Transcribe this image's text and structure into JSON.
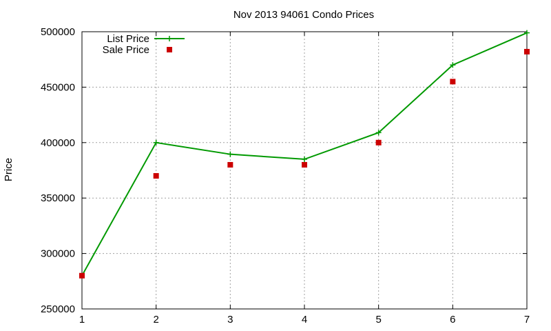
{
  "chart_data": {
    "type": "line",
    "title": "Nov 2013 94061 Condo Prices",
    "xlabel": "",
    "ylabel": "Price",
    "x": [
      1,
      2,
      3,
      4,
      5,
      6,
      7
    ],
    "xlim": [
      1,
      7
    ],
    "ylim": [
      250000,
      500000
    ],
    "xticks": [
      "1",
      "2",
      "3",
      "4",
      "5",
      "6",
      "7"
    ],
    "yticks": [
      "250000",
      "300000",
      "350000",
      "400000",
      "450000",
      "500000"
    ],
    "grid": true,
    "legend_position": "top-left",
    "series": [
      {
        "name": "List Price",
        "style": "line-plus",
        "color": "#009900",
        "values": [
          280000,
          400000,
          389500,
          385000,
          409000,
          470000,
          499000
        ]
      },
      {
        "name": "Sale Price",
        "style": "square-points",
        "color": "#cc0000",
        "values": [
          280000,
          370000,
          380000,
          380000,
          400000,
          455000,
          482000
        ]
      }
    ]
  }
}
